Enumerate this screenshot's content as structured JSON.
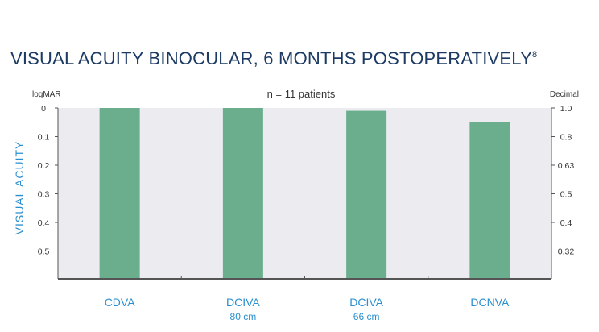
{
  "chart_data": {
    "type": "bar",
    "title": "VISUAL ACUITY BINOCULAR, 6 MONTHS POSTOPERATIVELY",
    "title_superscript": "8",
    "subtitle": "n = 11 patients",
    "ylabel": "VISUAL ACUITY",
    "left_axis_unit": "logMAR",
    "right_axis_unit": "Decimal",
    "left_ticks": [
      "0",
      "0.1",
      "0.2",
      "0.3",
      "0.4",
      "0.5"
    ],
    "right_ticks": [
      "1.0",
      "0.8",
      "0.63",
      "0.5",
      "0.4",
      "0.32"
    ],
    "ylim": [
      0,
      0.6
    ],
    "y_inverted": true,
    "grid": false,
    "categories": [
      {
        "label": "CDVA",
        "sublabel": ""
      },
      {
        "label": "DCIVA",
        "sublabel": "80 cm"
      },
      {
        "label": "DCIVA",
        "sublabel": "66 cm"
      },
      {
        "label": "DCNVA",
        "sublabel": ""
      }
    ],
    "values": [
      0.0,
      0.0,
      0.01,
      0.05
    ],
    "colors": {
      "bar": "#6aae8e",
      "title": "#1c3a63",
      "accent": "#2a8fcf",
      "plot_bg": "#ebebf0",
      "axis": "#555555"
    }
  }
}
